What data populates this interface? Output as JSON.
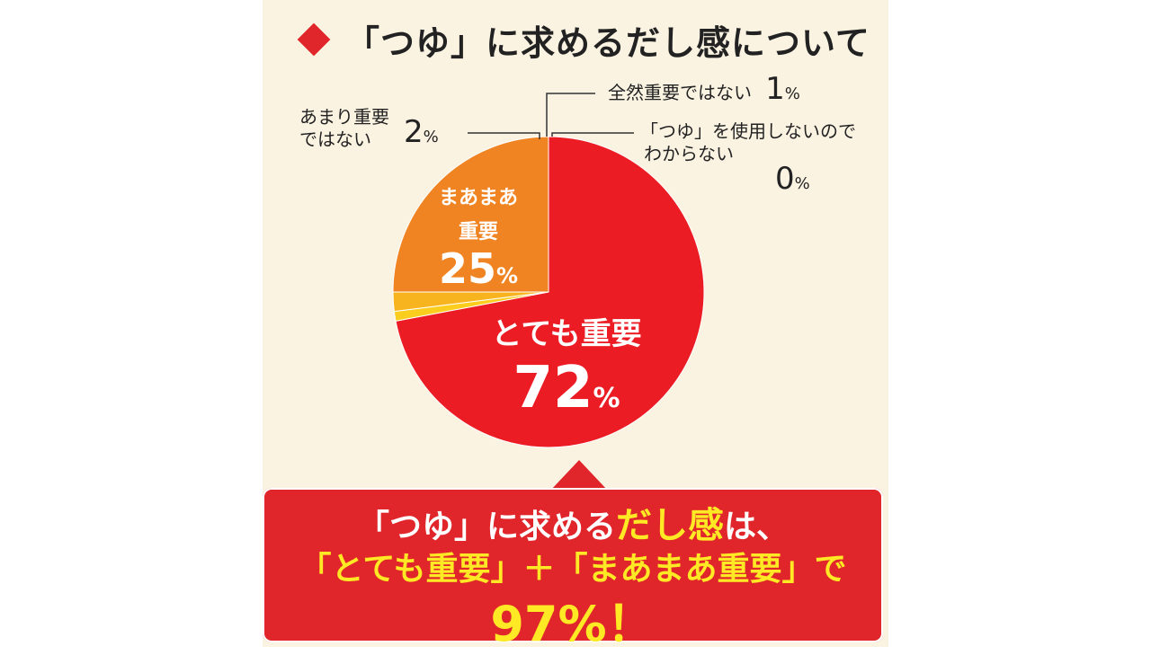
{
  "title": "「つゆ」に求めるだし感について",
  "chart_data": {
    "type": "pie",
    "title": "「つゆ」に求めるだし感について",
    "slices": [
      {
        "label": "とても重要",
        "value": 72,
        "unit": "%",
        "color": "#ec1c24"
      },
      {
        "label": "「つゆ」を使用しないのでわからない",
        "value": 0,
        "unit": "%",
        "color": "#f7b81b"
      },
      {
        "label": "全然重要ではない",
        "value": 1,
        "unit": "%",
        "color": "#fbcd1e"
      },
      {
        "label": "あまり重要ではない",
        "value": 2,
        "unit": "%",
        "color": "#f8b41e"
      },
      {
        "label": "まあまあ重要",
        "value": 25,
        "unit": "%",
        "color": "#f18422"
      }
    ]
  },
  "labels": {
    "very": {
      "name": "とても重要",
      "num": "72",
      "pct": "%"
    },
    "somewhat": {
      "line1": "まあまあ",
      "line2": "重要",
      "num": "25",
      "pct": "%"
    },
    "not_very": {
      "line1": "あまり重要",
      "line2": "ではない",
      "num": "2",
      "pct": "%"
    },
    "not_at_all": {
      "text": "全然重要ではない",
      "num": "1",
      "pct": "%"
    },
    "dont_know": {
      "line1": "「つゆ」を使用しないので",
      "line2": "わからない",
      "num": "0",
      "pct": "%"
    }
  },
  "callout": {
    "line1_a": "「つゆ」に求める",
    "line1_b": "だし感",
    "line1_c": "は、",
    "line2": "「とても重要」＋「まあまあ重要」で",
    "line3": "97%！"
  }
}
